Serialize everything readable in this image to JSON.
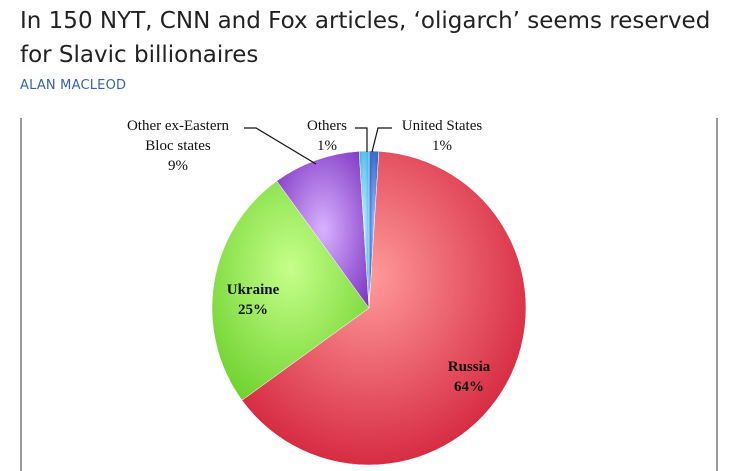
{
  "article": {
    "headline": "In 150 NYT, CNN and Fox articles, ‘oligarch’ seems reserved for Slavic billionaires",
    "byline": "ALAN MACLEOD"
  },
  "chart_data": {
    "type": "pie",
    "title": "",
    "slices": [
      {
        "label": "Russia",
        "value": 64,
        "value_label": "64%",
        "color": "#e8354b"
      },
      {
        "label": "Ukraine",
        "value": 25,
        "value_label": "25%",
        "color": "#8ee04a"
      },
      {
        "label": "Other ex-Eastern Bloc states",
        "label_lines": [
          "Other ex-Eastern",
          "Bloc states"
        ],
        "value": 9,
        "value_label": "9%",
        "color": "#9b56d6"
      },
      {
        "label": "Others",
        "value": 1,
        "value_label": "1%",
        "color": "#5ecbf0"
      },
      {
        "label": "United States",
        "value": 1,
        "value_label": "1%",
        "color": "#4a7fd8"
      }
    ],
    "start_angle": "12 o'clock, clockwise order: United States, Russia, Ukraine, Other ex-Eastern Bloc states, Others",
    "legend": "none"
  }
}
